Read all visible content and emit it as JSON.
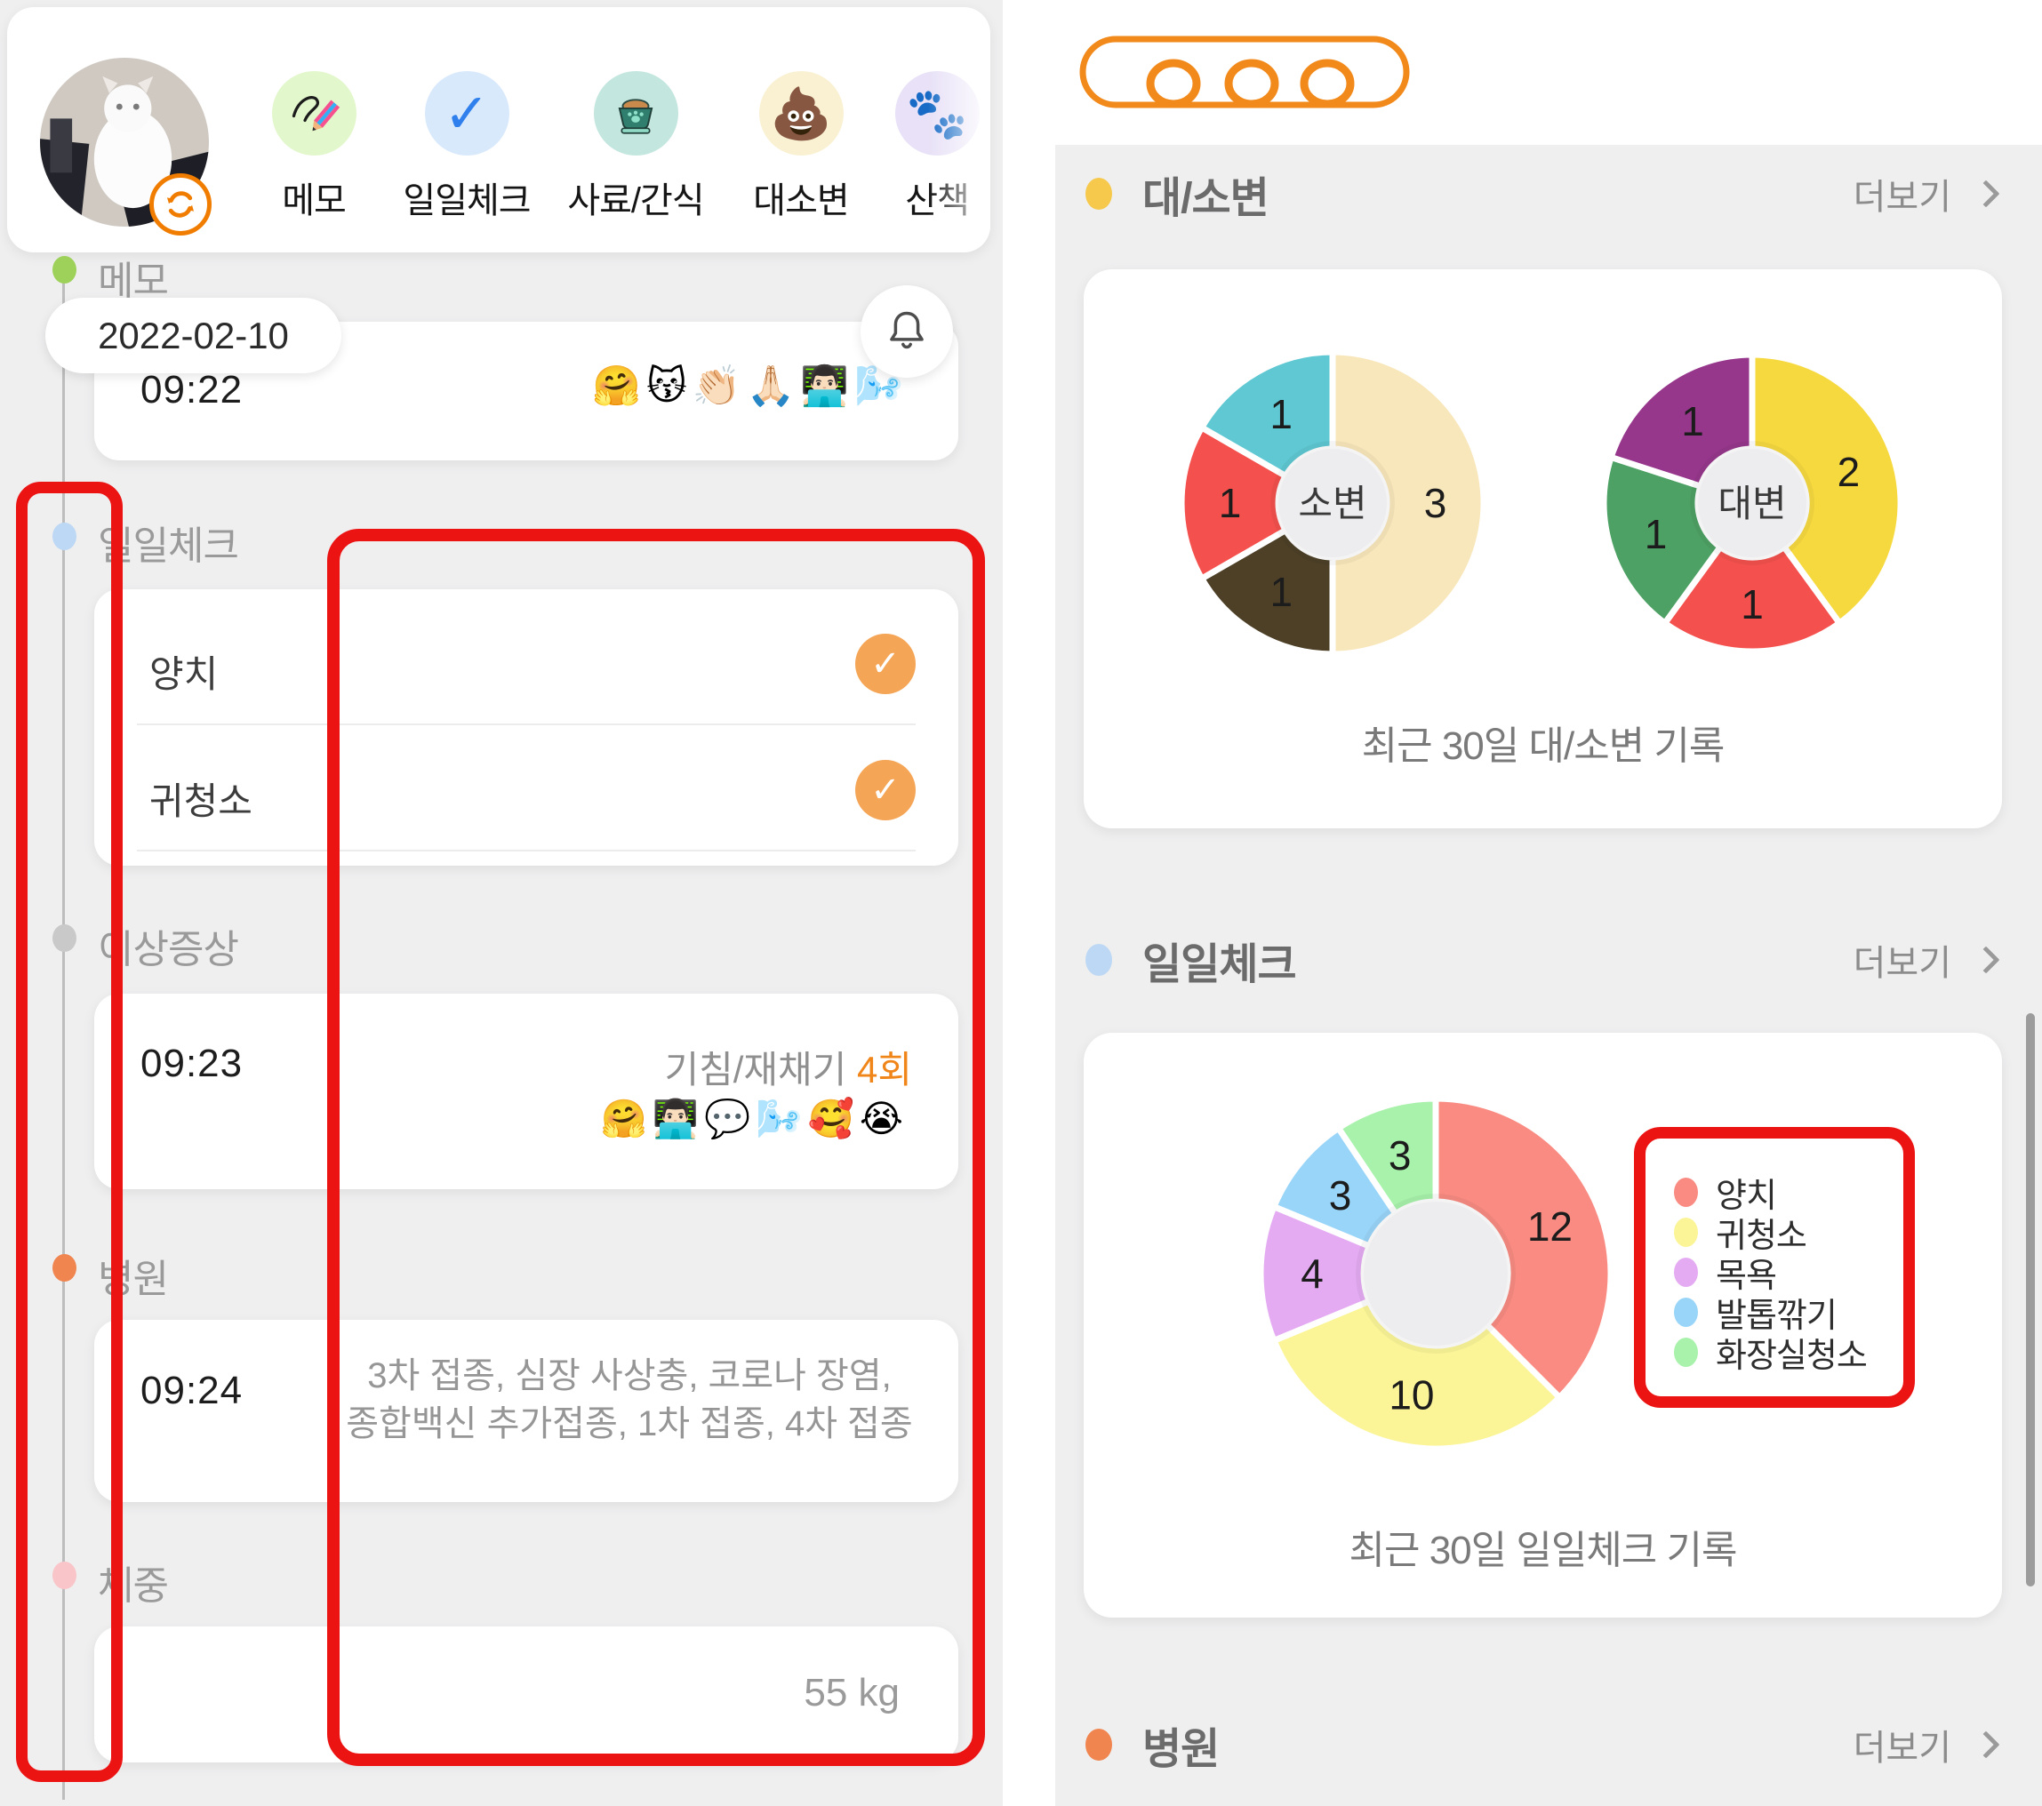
{
  "colors": {
    "panel_bg": "#EFEFF0",
    "annotation_red": "#EC1313",
    "annotation_orange": "#F2891B",
    "check_circle_orange": "#F5A556",
    "count_orange": "#F08519"
  },
  "left": {
    "shortcuts": [
      {
        "label": "메모",
        "bg": "#E3F7CC",
        "icon": "pencil-icon"
      },
      {
        "label": "일일체크",
        "bg": "#D9E9FC",
        "icon": "check-icon"
      },
      {
        "label": "사료/간식",
        "bg": "#C3E6DE",
        "icon": "bowl-icon"
      },
      {
        "label": "대소변",
        "bg": "#FAF1D3",
        "icon": "poop-icon",
        "glyph": "💩"
      },
      {
        "label": "산책",
        "bg": "#E8E1F7",
        "icon": "paw-icon",
        "glyph": "🐾"
      }
    ],
    "date_badge": "2022-02-10",
    "sections": {
      "memo": {
        "label": "메모",
        "dot": "#9DD159",
        "time": "09:22",
        "emojis": "🤗😽👏🏻🙏🏻👨🏻‍💻🌬️"
      },
      "daily": {
        "label": "일일체크",
        "dot": "#BDD8F4",
        "items": [
          {
            "label": "양치",
            "checked": true
          },
          {
            "label": "귀청소",
            "checked": true
          }
        ],
        "check_glyph": "✓"
      },
      "symptom": {
        "label": "이상증상",
        "dot": "#C9C9C9",
        "time": "09:23",
        "text": "기침/재채기",
        "count": "4회",
        "emojis": "🤗👨🏻‍💻💬🌬️🥰😭"
      },
      "hospital": {
        "label": "병원",
        "dot": "#F0854F",
        "time": "09:24",
        "line1": "3차 접종, 심장 사상충, 코로나 장염,",
        "line2": "종합백신 추가접종, 1차 접종, 4차 접종"
      },
      "weight": {
        "label": "체중",
        "dot": "#F9C5C8",
        "value": "55 kg"
      }
    }
  },
  "right": {
    "sections": {
      "excretion": {
        "title": "대/소변",
        "dot": "#F6C94D",
        "more": "더보기",
        "caption": "최근 30일 대/소변 기록"
      },
      "daily": {
        "title": "일일체크",
        "dot": "#BDD8F4",
        "more": "더보기",
        "caption": "최근 30일 일일체크 기록"
      },
      "hospital": {
        "title": "병원",
        "dot": "#F0854F",
        "more": "더보기"
      }
    }
  },
  "chart_data": [
    {
      "type": "donut",
      "center_label": "소변",
      "caption": "최근 30일 대/소변 기록",
      "total": 6,
      "series": [
        {
          "value": 3,
          "color": "#F9E7BC"
        },
        {
          "value": 1,
          "color": "#4D4027"
        },
        {
          "value": 1,
          "color": "#F4514E"
        },
        {
          "value": 1,
          "color": "#5FC8D2"
        }
      ],
      "layout_hint": "slices clockwise from top"
    },
    {
      "type": "donut",
      "center_label": "대변",
      "caption": "최근 30일 대/소변 기록",
      "total": 5,
      "series": [
        {
          "value": 2,
          "color": "#F6D93F"
        },
        {
          "value": 1,
          "color": "#F4514E"
        },
        {
          "value": 1,
          "color": "#4EA164"
        },
        {
          "value": 1,
          "color": "#97378C"
        }
      ],
      "layout_hint": "slices clockwise from top"
    },
    {
      "type": "donut",
      "center_label": "",
      "caption": "최근 30일 일일체크 기록",
      "total": 32,
      "legend_position": "right",
      "series": [
        {
          "label": "양치",
          "value": 12,
          "color": "#F98B82"
        },
        {
          "label": "귀청소",
          "value": 10,
          "color": "#FBF598"
        },
        {
          "label": "목욕",
          "value": 4,
          "color": "#E4ABF2"
        },
        {
          "label": "발톱깎기",
          "value": 3,
          "color": "#99D5F8"
        },
        {
          "label": "화장실청소",
          "value": 3,
          "color": "#A9F2AC"
        }
      ],
      "layout_hint": "slices clockwise from top"
    }
  ]
}
